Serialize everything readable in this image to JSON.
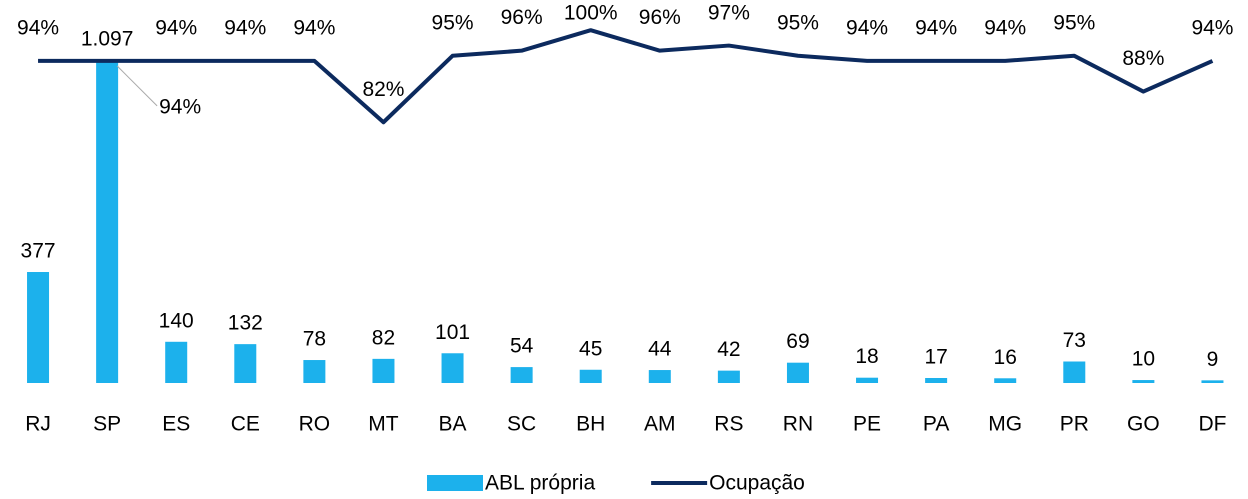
{
  "chart_data": {
    "type": "bar",
    "categories": [
      "RJ",
      "SP",
      "ES",
      "CE",
      "RO",
      "MT",
      "BA",
      "SC",
      "BH",
      "AM",
      "RS",
      "RN",
      "PE",
      "PA",
      "MG",
      "PR",
      "GO",
      "DF"
    ],
    "ylim": [
      0,
      1233
    ],
    "y2lim": [
      31,
      102
    ],
    "legend": "bottom",
    "series": [
      {
        "name": "ABL própria",
        "type": "bar",
        "color": "#1cb1ec",
        "values": [
          377,
          1097,
          140,
          132,
          78,
          82,
          101,
          54,
          45,
          44,
          42,
          69,
          18,
          17,
          16,
          73,
          10,
          9
        ],
        "value_labels": [
          "377",
          "1.097",
          "140",
          "132",
          "78",
          "82",
          "101",
          "54",
          "45",
          "44",
          "42",
          "69",
          "18",
          "17",
          "16",
          "73",
          "10",
          "9"
        ]
      },
      {
        "name": "Ocupação",
        "type": "line",
        "axis": "y2",
        "color": "#0c2a5e",
        "values": [
          94,
          94,
          94,
          94,
          94,
          82,
          95,
          96,
          100,
          96,
          97,
          95,
          94,
          94,
          94,
          95,
          88,
          94
        ],
        "value_labels": [
          "94%",
          "94%",
          "94%",
          "94%",
          "94%",
          "82%",
          "95%",
          "96%",
          "100%",
          "96%",
          "97%",
          "95%",
          "94%",
          "94%",
          "94%",
          "95%",
          "88%",
          "94%"
        ]
      }
    ]
  }
}
